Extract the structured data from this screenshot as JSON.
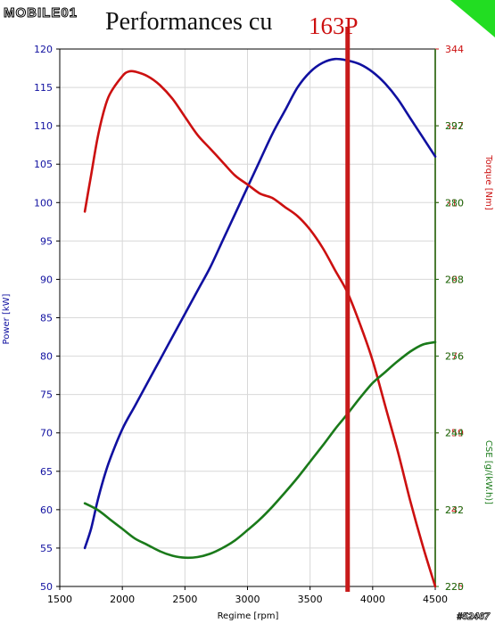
{
  "header": {
    "logo_text": "MOBILE01",
    "title": "Performances cu",
    "annotation": "163P",
    "watermark": "#52467"
  },
  "colors": {
    "power": "#1010a0",
    "torque": "#cc1010",
    "cse": "#1a7a1a",
    "marker": "#c81a1a",
    "grid": "#d8d8d8",
    "corner": "#22dd22"
  },
  "chart_data": {
    "type": "line",
    "title": "Performances cu",
    "xlabel": "Regime [rpm]",
    "xlim": [
      1500,
      4500
    ],
    "xticks": [
      1500,
      2000,
      2500,
      3000,
      3500,
      4000,
      4500
    ],
    "grid": true,
    "marker_x": 3800,
    "marker_label": "163P",
    "axes": [
      {
        "id": "power",
        "label": "Power [kW]",
        "side": "left",
        "range": [
          50,
          120
        ],
        "ticks": [
          50,
          55,
          60,
          65,
          70,
          75,
          80,
          85,
          90,
          95,
          100,
          105,
          110,
          115,
          120
        ]
      },
      {
        "id": "torque",
        "label": "Torque [Nm]",
        "side": "right",
        "range": [
          225,
          344
        ],
        "ticks": [
          225,
          242,
          259,
          276,
          293,
          310,
          327,
          344
        ]
      },
      {
        "id": "cse",
        "label": "CSE [g/(kW.h)]",
        "side": "right",
        "range": [
          220,
          304
        ],
        "ticks": [
          220,
          232,
          244,
          256,
          268,
          280,
          292
        ]
      }
    ],
    "series": [
      {
        "axis": "power",
        "x": [
          1700,
          1750,
          1800,
          1850,
          1900,
          2000,
          2100,
          2200,
          2300,
          2400,
          2500,
          2600,
          2700,
          2800,
          2900,
          3000,
          3100,
          3200,
          3300,
          3400,
          3500,
          3600,
          3700,
          3800,
          3900,
          4000,
          4100,
          4200,
          4300,
          4400,
          4500
        ],
        "y": [
          55,
          57.5,
          61,
          64,
          66.5,
          70.5,
          73.5,
          76.5,
          79.5,
          82.5,
          85.5,
          88.5,
          91.5,
          95,
          98.5,
          102,
          105.5,
          109,
          112,
          115,
          117,
          118.2,
          118.7,
          118.5,
          118,
          117,
          115.5,
          113.5,
          111,
          108.5,
          106
        ]
      },
      {
        "axis": "torque",
        "x": [
          1700,
          1750,
          1800,
          1850,
          1900,
          2000,
          2050,
          2100,
          2200,
          2300,
          2400,
          2500,
          2600,
          2700,
          2800,
          2900,
          3000,
          3100,
          3200,
          3300,
          3400,
          3500,
          3600,
          3700,
          3800,
          3900,
          4000,
          4100,
          4200,
          4300,
          4400,
          4500
        ],
        "y": [
          308,
          316,
          324,
          330,
          334,
          338,
          339,
          339,
          338,
          336,
          333,
          329,
          325,
          322,
          319,
          316,
          314,
          312,
          311,
          309,
          307,
          304,
          300,
          295,
          290,
          283,
          275,
          265,
          255,
          244,
          234,
          225
        ]
      },
      {
        "axis": "cse",
        "x": [
          1700,
          1800,
          1900,
          2000,
          2100,
          2200,
          2300,
          2400,
          2500,
          2600,
          2700,
          2800,
          2900,
          3000,
          3100,
          3200,
          3300,
          3400,
          3500,
          3600,
          3700,
          3800,
          3900,
          4000,
          4100,
          4200,
          4300,
          4400,
          4500
        ],
        "y": [
          233,
          232,
          230.5,
          229,
          227.5,
          226.5,
          225.5,
          224.8,
          224.5,
          224.6,
          225.1,
          226,
          227.2,
          228.8,
          230.5,
          232.5,
          234.7,
          237,
          239.5,
          242,
          244.6,
          247,
          249.5,
          251.8,
          253.5,
          255.2,
          256.7,
          257.8,
          258.2
        ]
      }
    ]
  }
}
